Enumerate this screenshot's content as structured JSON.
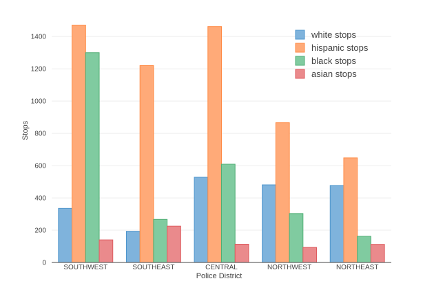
{
  "chart_data": {
    "type": "bar",
    "title": "",
    "xlabel": "Police District",
    "ylabel": "Stops",
    "categories": [
      "SOUTHWEST",
      "SOUTHEAST",
      "CENTRAL",
      "NORTHWEST",
      "NORTHEAST"
    ],
    "series": [
      {
        "name": "white stops",
        "values": [
          335,
          193,
          528,
          481,
          477
        ],
        "color": "#7fb3dc",
        "stroke": "#4d94cc"
      },
      {
        "name": "hispanic stops",
        "values": [
          1471,
          1220,
          1462,
          866,
          648
        ],
        "color": "#ffaa78",
        "stroke": "#ff8a44"
      },
      {
        "name": "black stops",
        "values": [
          1300,
          267,
          609,
          303,
          162
        ],
        "color": "#80cba0",
        "stroke": "#4fae74"
      },
      {
        "name": "asian stops",
        "values": [
          140,
          225,
          113,
          93,
          112
        ],
        "color": "#ea8a8c",
        "stroke": "#dd5b5f"
      }
    ],
    "ylim": [
      0,
      1550
    ],
    "yticks": [
      0,
      200,
      400,
      600,
      800,
      1000,
      1200,
      1400
    ],
    "grid": true,
    "legend": "top-right"
  }
}
